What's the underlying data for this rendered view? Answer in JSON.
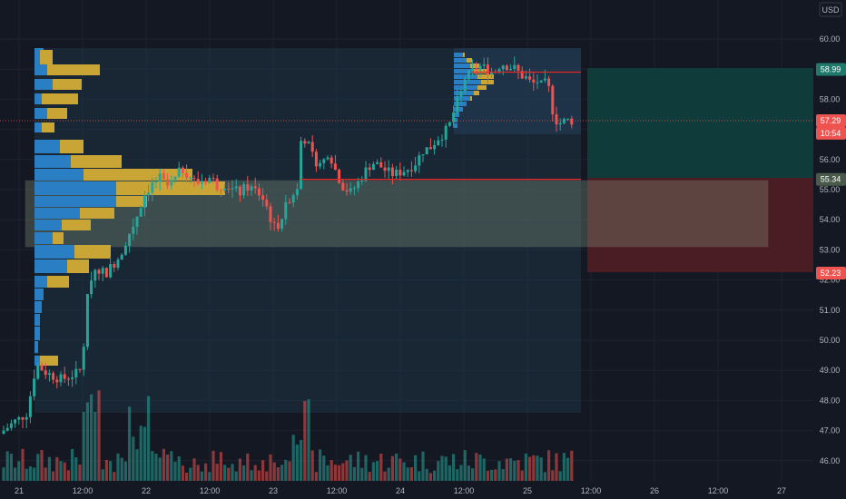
{
  "currency_label": "USD",
  "colors": {
    "background": "#141823",
    "grid": "#1e2230",
    "up": "#26a69a",
    "down": "#ef5350",
    "vp_blue": "#2a7fc4",
    "vp_gold": "#c8a534",
    "target_zone": "#0f3b3a",
    "stop_zone": "#4a1c24",
    "value_area": "#4a5a4a",
    "red_line": "#e02a2a"
  },
  "price_axis": {
    "ticks": [
      "60.00",
      "59.00",
      "58.00",
      "57.00",
      "56.00",
      "55.00",
      "54.00",
      "53.00",
      "52.00",
      "51.00",
      "50.00",
      "49.00",
      "48.00",
      "47.00",
      "46.00"
    ],
    "tags": [
      {
        "name": "target-price-tag",
        "price": 58.99,
        "label": "58.99",
        "color": "#1f7a6c"
      },
      {
        "name": "last-price-tag",
        "price": 57.29,
        "label": "57.29",
        "color": "#ef5350"
      },
      {
        "name": "countdown-tag",
        "price": 56.87,
        "label": "10:54",
        "color": "#ef5350"
      },
      {
        "name": "entry-price-tag",
        "price": 55.34,
        "label": "55.34",
        "color": "#4a5a4a"
      },
      {
        "name": "stop-price-tag",
        "price": 52.23,
        "label": "52.23",
        "color": "#ef5350"
      }
    ]
  },
  "time_axis": {
    "labels": [
      "21",
      "12:00",
      "22",
      "12:00",
      "23",
      "12:00",
      "24",
      "12:00",
      "25",
      "12:00",
      "26",
      "12:00",
      "27"
    ]
  },
  "chart_data": {
    "type": "candlestick",
    "symbol_currency": "USD",
    "ylim": [
      45.5,
      60.5
    ],
    "last_price": 57.29,
    "countdown": "10:54",
    "position": {
      "entry": 55.34,
      "target": 58.99,
      "stop": 52.23
    },
    "value_area": {
      "high": 55.3,
      "low": 53.1
    },
    "x_labels": [
      "21",
      "12:00",
      "22",
      "12:00",
      "23",
      "12:00",
      "24",
      "12:00",
      "25",
      "12:00",
      "26",
      "12:00",
      "27"
    ],
    "y_ticks": [
      60,
      59,
      58,
      57,
      56,
      55,
      54,
      53,
      52,
      51,
      50,
      49,
      48,
      47,
      46
    ]
  }
}
